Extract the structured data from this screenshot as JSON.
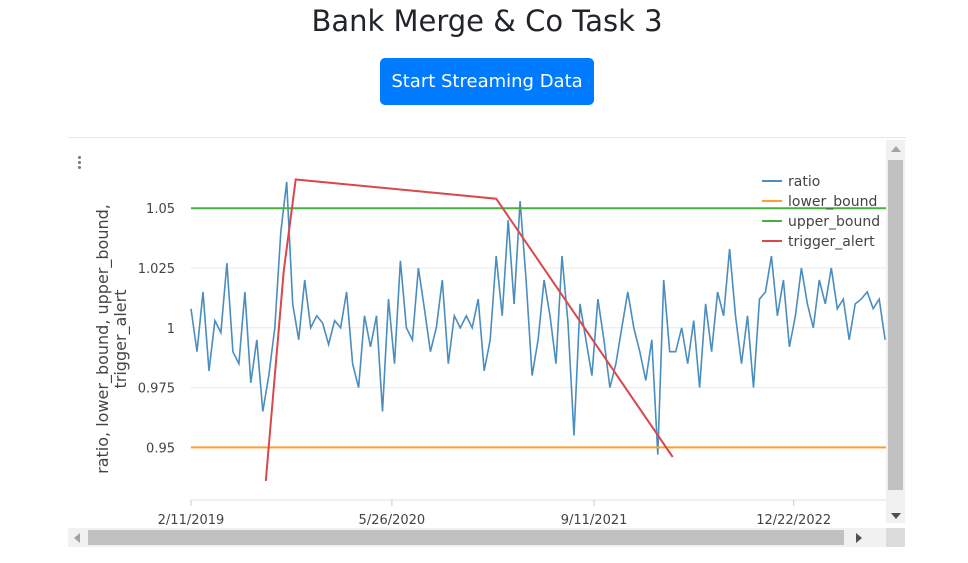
{
  "page": {
    "title": "Bank Merge & Co Task 3"
  },
  "controls": {
    "stream_button_label": "Start Streaming Data"
  },
  "colors": {
    "ratio": "#4a8dbf",
    "lower_bound": "#ff9d2e",
    "upper_bound": "#46b13d",
    "trigger_alert": "#d9484b",
    "button": "#007bff"
  },
  "chart_data": {
    "type": "line",
    "ylabel": "ratio, lower_bound, upper_bound, trigger_alert",
    "xlabel": "",
    "x_ticks": [
      "2/11/2019",
      "5/26/2020",
      "9/11/2021",
      "12/22/2022"
    ],
    "y_ticks": [
      "0.95",
      "0.975",
      "1",
      "1.025",
      "1.05"
    ],
    "ylim": [
      0.928,
      1.071
    ],
    "xlim": [
      "2019-02-11",
      "2023-07-26"
    ],
    "legend": {
      "position": "top-right",
      "entries": [
        "ratio",
        "lower_bound",
        "upper_bound",
        "trigger_alert"
      ]
    },
    "grid": "horizontal",
    "series": [
      {
        "name": "ratio",
        "x": [
          "2019-02-11",
          "2019-02-25",
          "2019-03-11",
          "2019-03-25",
          "2019-04-08",
          "2019-04-22",
          "2019-05-06",
          "2019-05-20",
          "2019-06-03",
          "2019-06-17",
          "2019-07-01",
          "2019-07-15",
          "2019-07-29",
          "2019-08-12",
          "2019-08-26",
          "2019-09-09",
          "2019-09-23",
          "2019-10-07",
          "2019-10-21",
          "2019-11-04",
          "2019-11-18",
          "2019-12-02",
          "2019-12-16",
          "2019-12-30",
          "2020-01-13",
          "2020-01-27",
          "2020-02-10",
          "2020-02-24",
          "2020-03-09",
          "2020-03-23",
          "2020-04-06",
          "2020-04-20",
          "2020-05-04",
          "2020-05-18",
          "2020-06-01",
          "2020-06-15",
          "2020-06-29",
          "2020-07-13",
          "2020-07-27",
          "2020-08-10",
          "2020-08-24",
          "2020-09-07",
          "2020-09-21",
          "2020-10-05",
          "2020-10-19",
          "2020-11-02",
          "2020-11-16",
          "2020-11-30",
          "2020-12-14",
          "2020-12-28",
          "2021-01-11",
          "2021-01-25",
          "2021-02-08",
          "2021-02-22",
          "2021-03-08",
          "2021-03-22",
          "2021-04-05",
          "2021-04-19",
          "2021-05-03",
          "2021-05-17",
          "2021-05-31",
          "2021-06-14",
          "2021-06-28",
          "2021-07-12",
          "2021-07-26",
          "2021-08-09",
          "2021-08-23",
          "2021-09-06",
          "2021-09-20",
          "2021-10-04",
          "2021-10-18",
          "2021-11-01",
          "2021-11-15",
          "2021-11-29",
          "2021-12-13",
          "2021-12-27",
          "2022-01-10",
          "2022-01-24",
          "2022-02-07",
          "2022-02-21",
          "2022-03-07",
          "2022-03-21",
          "2022-04-04",
          "2022-04-18",
          "2022-05-02",
          "2022-05-16",
          "2022-05-30",
          "2022-06-13",
          "2022-06-27",
          "2022-07-11",
          "2022-07-25",
          "2022-08-08",
          "2022-08-22",
          "2022-09-05",
          "2022-09-19",
          "2022-10-03",
          "2022-10-17",
          "2022-10-31",
          "2022-11-14",
          "2022-11-28",
          "2022-12-12",
          "2022-12-26",
          "2023-01-09",
          "2023-01-23",
          "2023-02-06",
          "2023-02-20",
          "2023-03-06",
          "2023-03-20",
          "2023-04-03",
          "2023-04-17",
          "2023-05-01",
          "2023-05-15",
          "2023-05-29",
          "2023-06-12",
          "2023-06-26",
          "2023-07-10",
          "2023-07-24"
        ],
        "values": [
          1.008,
          0.99,
          1.015,
          0.982,
          1.003,
          0.998,
          1.027,
          0.99,
          0.985,
          1.015,
          0.977,
          0.995,
          0.965,
          0.98,
          1.0,
          1.04,
          1.061,
          1.01,
          0.995,
          1.02,
          1.0,
          1.005,
          1.002,
          0.993,
          1.003,
          1.0,
          1.015,
          0.985,
          0.975,
          1.005,
          0.992,
          1.005,
          0.965,
          1.012,
          0.985,
          1.028,
          1.0,
          0.995,
          1.025,
          1.008,
          0.99,
          1.0,
          1.02,
          0.985,
          1.005,
          1.0,
          1.005,
          1.0,
          1.012,
          0.982,
          0.995,
          1.03,
          1.005,
          1.045,
          1.01,
          1.053,
          1.02,
          0.98,
          0.995,
          1.02,
          1.005,
          0.985,
          1.03,
          1.002,
          0.955,
          1.01,
          0.995,
          0.98,
          1.012,
          0.995,
          0.975,
          0.985,
          1.0,
          1.015,
          1.0,
          0.99,
          0.978,
          0.995,
          0.947,
          1.02,
          0.99,
          0.99,
          1.0,
          0.985,
          1.003,
          0.975,
          1.01,
          0.99,
          1.015,
          1.005,
          1.033,
          1.005,
          0.985,
          1.005,
          0.975,
          1.012,
          1.015,
          1.03,
          1.005,
          1.02,
          0.992,
          1.005,
          1.025,
          1.01,
          1.0,
          1.02,
          1.01,
          1.025,
          1.008,
          1.012,
          0.995,
          1.01,
          1.012,
          1.015,
          1.008,
          1.012,
          0.995
        ]
      },
      {
        "name": "lower_bound",
        "x": [
          "2019-02-11",
          "2023-07-26"
        ],
        "values": [
          0.95,
          0.95
        ]
      },
      {
        "name": "upper_bound",
        "x": [
          "2019-02-11",
          "2023-07-26"
        ],
        "values": [
          1.05,
          1.05
        ]
      },
      {
        "name": "trigger_alert",
        "x": [
          "2019-08-05",
          "2019-09-16",
          "2019-10-14",
          "2021-01-25",
          "2022-03-14"
        ],
        "values": [
          0.936,
          1.024,
          1.062,
          1.054,
          0.946
        ]
      }
    ]
  }
}
